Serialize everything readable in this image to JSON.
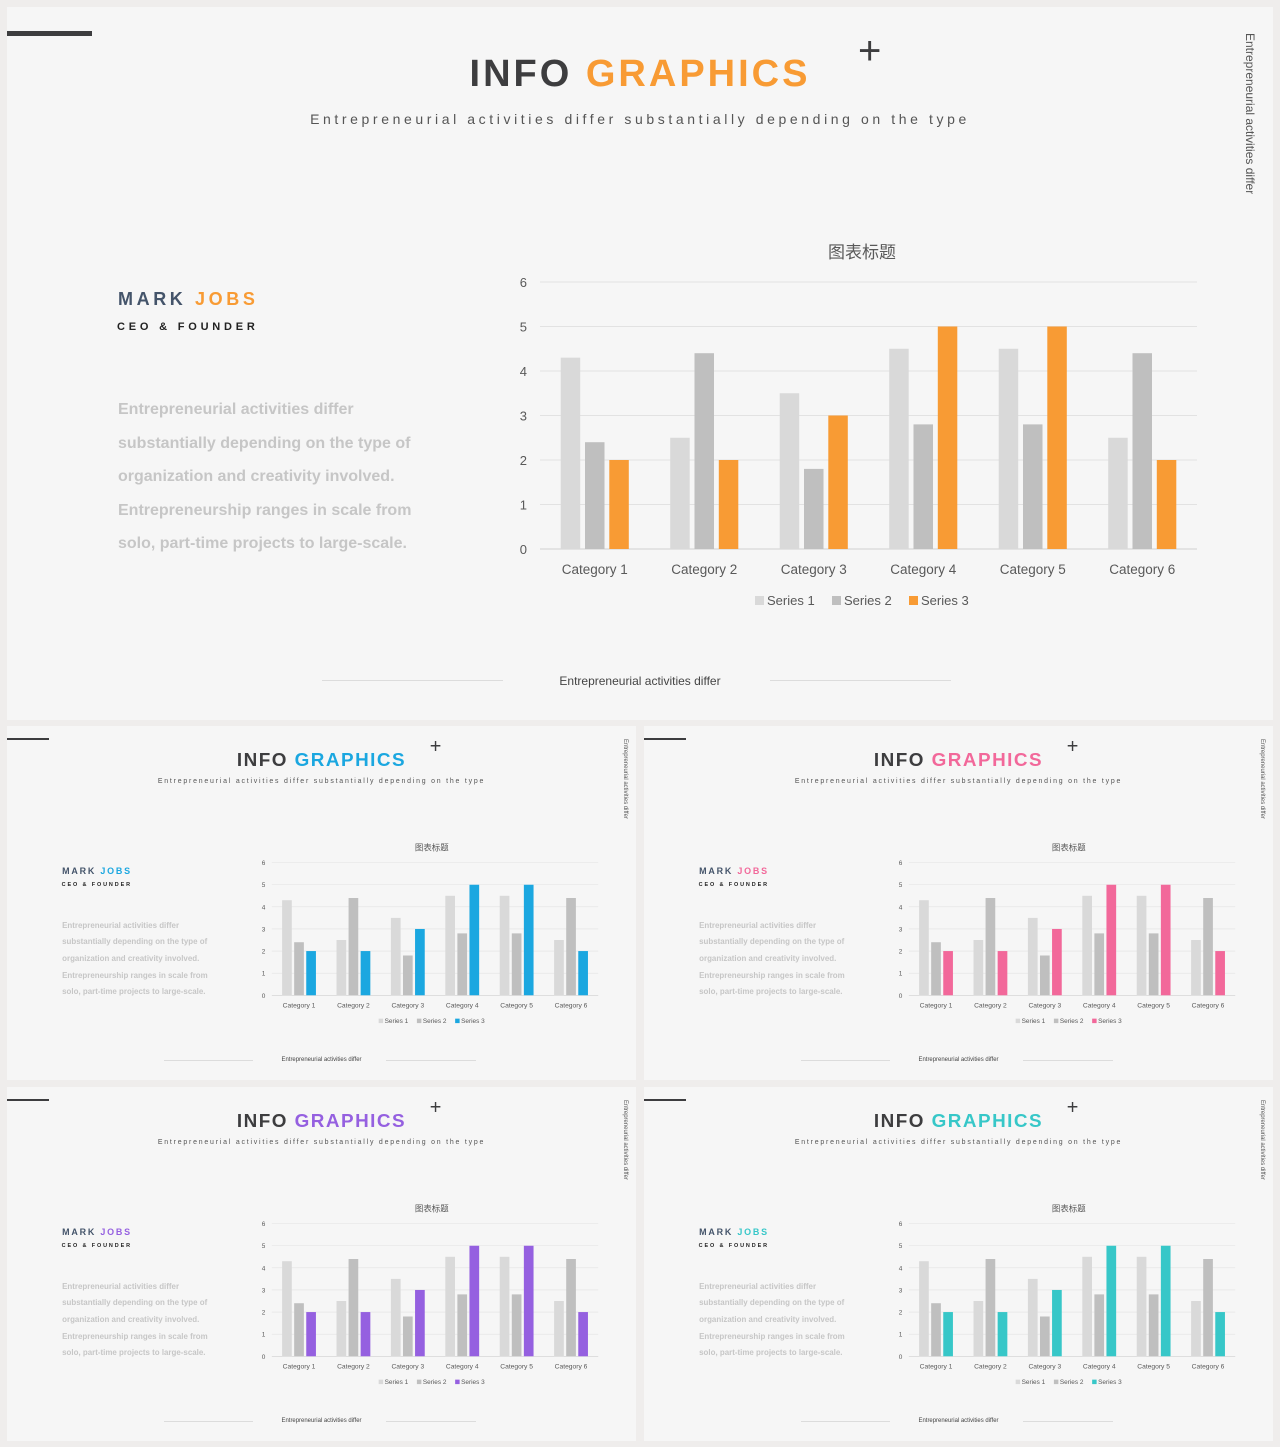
{
  "slides": [
    {
      "id": "main",
      "accent": "#f89b34",
      "title_a": "INFO",
      "title_b": "GRAPHICS",
      "plus": "+"
    },
    {
      "id": "blue",
      "accent": "#1ba7e0",
      "title_a": "INFO",
      "title_b": "GRAPHICS",
      "plus": "+"
    },
    {
      "id": "pink",
      "accent": "#f2689a",
      "title_a": "INFO",
      "title_b": "GRAPHICS",
      "plus": "+"
    },
    {
      "id": "purple",
      "accent": "#9560e0",
      "title_a": "INFO",
      "title_b": "GRAPHICS",
      "plus": "+"
    },
    {
      "id": "teal",
      "accent": "#37c7c8",
      "title_a": "INFO",
      "title_b": "GRAPHICS",
      "plus": "+"
    }
  ],
  "content": {
    "subtitle": "Entrepreneurial activities differ substantially depending on the type",
    "vertical_text": "Entrepreneurial activities differ",
    "name_first": "MARK",
    "name_last": "JOBS",
    "role": "CEO & FOUNDER",
    "paragraph_lines": [
      "Entrepreneurial activities differ",
      "substantially depending on the type of",
      "organization and creativity involved.",
      "Entrepreneurship ranges in scale from",
      "solo, part-time projects to large-scale."
    ],
    "footer": "Entrepreneurial activities differ"
  },
  "chart_data": {
    "type": "bar",
    "title": "图表标题",
    "categories": [
      "Category 1",
      "Category 2",
      "Category 3",
      "Category 4",
      "Category 5",
      "Category 6"
    ],
    "series": [
      {
        "name": "Series 1",
        "values": [
          4.3,
          2.5,
          3.5,
          4.5,
          4.5,
          2.5
        ],
        "color": "#d9d9d9"
      },
      {
        "name": "Series 2",
        "values": [
          2.4,
          4.4,
          1.8,
          2.8,
          2.8,
          4.4
        ],
        "color": "#bfbfbf"
      },
      {
        "name": "Series 3",
        "values": [
          2,
          2,
          3,
          5,
          5,
          2
        ],
        "color": "accent"
      }
    ],
    "ylim": [
      0,
      6
    ],
    "yticks": [
      0,
      1,
      2,
      3,
      4,
      5,
      6
    ],
    "grid": true,
    "legend": "bottom"
  }
}
